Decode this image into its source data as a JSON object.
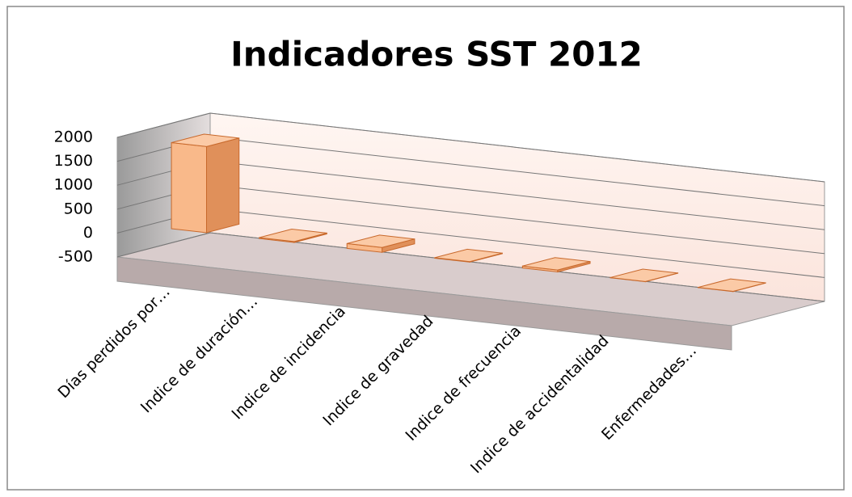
{
  "chart_data": {
    "type": "bar",
    "title": "Indicadores SST 2012",
    "categories": [
      "Días perdidos por…",
      "Indice de duración…",
      "Indice de incidencia",
      "Indice de gravedad",
      "Indice de frecuencia",
      "Indice de accidentalidad",
      "Enfermedades…"
    ],
    "values": [
      1800,
      20,
      100,
      10,
      40,
      5,
      5
    ],
    "color": "#f9b98a",
    "ylim": [
      -500,
      2000
    ],
    "yticks": [
      -500,
      0,
      500,
      1000,
      1500,
      2000
    ],
    "grid": true
  }
}
